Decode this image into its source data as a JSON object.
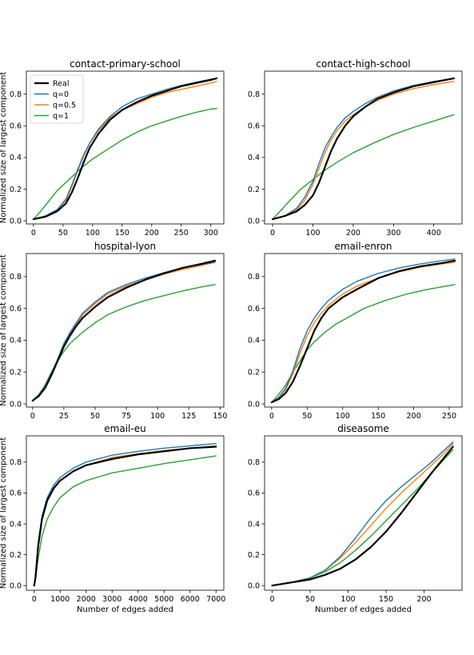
{
  "figure": {
    "ylabel": "Normalized size of largest component",
    "xlabel": "Number of edges added",
    "legend_position": "upper-left",
    "legend_panel": 0
  },
  "chart_data": [
    {
      "type": "line",
      "title": "contact-primary-school",
      "xlabel": "",
      "ylabel": "Normalized size of largest component",
      "xlim": [
        -12,
        322
      ],
      "ylim": [
        -0.02,
        0.945
      ],
      "xticks": [
        0,
        50,
        100,
        150,
        200,
        250,
        300
      ],
      "yticks": [
        0.0,
        0.2,
        0.4,
        0.6,
        0.8
      ],
      "grid": false,
      "series": [
        {
          "name": "Real",
          "color": "#000000",
          "width": 2.2,
          "x": [
            0,
            20,
            40,
            55,
            65,
            75,
            85,
            95,
            110,
            130,
            150,
            175,
            200,
            225,
            250,
            275,
            300,
            310
          ],
          "y": [
            0.01,
            0.025,
            0.06,
            0.11,
            0.18,
            0.27,
            0.37,
            0.46,
            0.55,
            0.64,
            0.7,
            0.75,
            0.79,
            0.82,
            0.85,
            0.87,
            0.89,
            0.9
          ]
        },
        {
          "name": "q=0",
          "color": "#1f77b4",
          "width": 1.4,
          "x": [
            0,
            20,
            40,
            55,
            65,
            75,
            85,
            95,
            110,
            130,
            150,
            175,
            200,
            225,
            250,
            275,
            300,
            310
          ],
          "y": [
            0.01,
            0.03,
            0.07,
            0.13,
            0.22,
            0.32,
            0.41,
            0.49,
            0.58,
            0.66,
            0.72,
            0.77,
            0.8,
            0.83,
            0.855,
            0.875,
            0.895,
            0.9
          ]
        },
        {
          "name": "q=0.5",
          "color": "#ff7f0e",
          "width": 1.4,
          "x": [
            0,
            20,
            40,
            55,
            65,
            75,
            85,
            95,
            110,
            130,
            150,
            175,
            200,
            225,
            250,
            275,
            300,
            310
          ],
          "y": [
            0.01,
            0.03,
            0.07,
            0.14,
            0.23,
            0.33,
            0.42,
            0.49,
            0.57,
            0.65,
            0.7,
            0.74,
            0.78,
            0.81,
            0.83,
            0.85,
            0.87,
            0.88
          ]
        },
        {
          "name": "q=1",
          "color": "#2ca02c",
          "width": 1.4,
          "x": [
            0,
            10,
            25,
            40,
            60,
            80,
            100,
            125,
            150,
            175,
            200,
            225,
            250,
            275,
            300,
            310
          ],
          "y": [
            0.01,
            0.05,
            0.12,
            0.19,
            0.26,
            0.33,
            0.39,
            0.45,
            0.51,
            0.56,
            0.6,
            0.63,
            0.66,
            0.685,
            0.705,
            0.71
          ]
        }
      ]
    },
    {
      "type": "line",
      "title": "contact-high-school",
      "xlabel": "",
      "ylabel": "",
      "xlim": [
        -20,
        470
      ],
      "ylim": [
        -0.02,
        0.945
      ],
      "xticks": [
        0,
        100,
        200,
        300,
        400
      ],
      "yticks": [
        0.0,
        0.2,
        0.4,
        0.6,
        0.8
      ],
      "grid": false,
      "series": [
        {
          "name": "Real",
          "color": "#000000",
          "width": 2.2,
          "x": [
            0,
            30,
            60,
            80,
            100,
            115,
            130,
            145,
            160,
            180,
            200,
            230,
            260,
            300,
            350,
            400,
            450
          ],
          "y": [
            0.01,
            0.03,
            0.06,
            0.1,
            0.16,
            0.24,
            0.34,
            0.44,
            0.52,
            0.6,
            0.66,
            0.72,
            0.77,
            0.81,
            0.85,
            0.875,
            0.9
          ]
        },
        {
          "name": "q=0",
          "color": "#1f77b4",
          "width": 1.4,
          "x": [
            0,
            30,
            60,
            80,
            100,
            115,
            130,
            145,
            160,
            180,
            200,
            230,
            260,
            300,
            350,
            400,
            450
          ],
          "y": [
            0.01,
            0.03,
            0.08,
            0.15,
            0.25,
            0.36,
            0.46,
            0.53,
            0.59,
            0.65,
            0.69,
            0.74,
            0.78,
            0.82,
            0.855,
            0.88,
            0.9
          ]
        },
        {
          "name": "q=0.5",
          "color": "#ff7f0e",
          "width": 1.4,
          "x": [
            0,
            30,
            60,
            80,
            100,
            115,
            130,
            145,
            160,
            180,
            200,
            230,
            260,
            300,
            350,
            400,
            450
          ],
          "y": [
            0.01,
            0.03,
            0.07,
            0.13,
            0.23,
            0.33,
            0.43,
            0.51,
            0.57,
            0.63,
            0.67,
            0.72,
            0.76,
            0.8,
            0.835,
            0.86,
            0.88
          ]
        },
        {
          "name": "q=1",
          "color": "#2ca02c",
          "width": 1.4,
          "x": [
            0,
            15,
            40,
            70,
            100,
            130,
            160,
            200,
            250,
            300,
            350,
            400,
            450
          ],
          "y": [
            0.01,
            0.05,
            0.12,
            0.2,
            0.26,
            0.32,
            0.37,
            0.43,
            0.49,
            0.545,
            0.59,
            0.63,
            0.67
          ]
        }
      ]
    },
    {
      "type": "line",
      "title": "hospital-lyon",
      "xlabel": "",
      "ylabel": "Normalized size of largest component",
      "xlim": [
        -5,
        153
      ],
      "ylim": [
        -0.02,
        0.945
      ],
      "xticks": [
        0,
        25,
        50,
        75,
        100,
        125,
        150
      ],
      "yticks": [
        0.0,
        0.2,
        0.4,
        0.6,
        0.8
      ],
      "grid": false,
      "series": [
        {
          "name": "Real",
          "color": "#000000",
          "width": 2.2,
          "x": [
            0,
            5,
            10,
            15,
            20,
            25,
            30,
            35,
            40,
            50,
            60,
            75,
            90,
            105,
            120,
            135,
            146
          ],
          "y": [
            0.02,
            0.05,
            0.1,
            0.18,
            0.27,
            0.36,
            0.43,
            0.49,
            0.54,
            0.61,
            0.67,
            0.73,
            0.78,
            0.82,
            0.855,
            0.88,
            0.9
          ]
        },
        {
          "name": "q=0",
          "color": "#1f77b4",
          "width": 1.4,
          "x": [
            0,
            5,
            10,
            15,
            20,
            25,
            30,
            35,
            40,
            50,
            60,
            75,
            90,
            105,
            120,
            135,
            146
          ],
          "y": [
            0.02,
            0.05,
            0.11,
            0.19,
            0.28,
            0.38,
            0.45,
            0.51,
            0.57,
            0.64,
            0.7,
            0.75,
            0.79,
            0.825,
            0.855,
            0.875,
            0.89
          ]
        },
        {
          "name": "q=0.5",
          "color": "#ff7f0e",
          "width": 1.4,
          "x": [
            0,
            5,
            10,
            15,
            20,
            25,
            30,
            35,
            40,
            50,
            60,
            75,
            90,
            105,
            120,
            135,
            146
          ],
          "y": [
            0.02,
            0.05,
            0.11,
            0.19,
            0.28,
            0.37,
            0.44,
            0.5,
            0.56,
            0.63,
            0.69,
            0.74,
            0.78,
            0.815,
            0.845,
            0.87,
            0.89
          ]
        },
        {
          "name": "q=1",
          "color": "#2ca02c",
          "width": 1.4,
          "x": [
            0,
            5,
            10,
            15,
            20,
            25,
            30,
            40,
            50,
            60,
            75,
            90,
            105,
            120,
            135,
            146
          ],
          "y": [
            0.02,
            0.06,
            0.12,
            0.2,
            0.27,
            0.33,
            0.38,
            0.45,
            0.51,
            0.56,
            0.61,
            0.65,
            0.68,
            0.71,
            0.735,
            0.75
          ]
        }
      ]
    },
    {
      "type": "line",
      "title": "email-enron",
      "xlabel": "",
      "ylabel": "",
      "xlim": [
        -10,
        268
      ],
      "ylim": [
        -0.02,
        0.945
      ],
      "xticks": [
        0,
        50,
        100,
        150,
        200,
        250
      ],
      "yticks": [
        0.0,
        0.2,
        0.4,
        0.6,
        0.8
      ],
      "grid": false,
      "series": [
        {
          "name": "Real",
          "color": "#000000",
          "width": 2.2,
          "x": [
            0,
            10,
            20,
            30,
            40,
            50,
            60,
            70,
            80,
            100,
            120,
            150,
            180,
            210,
            240,
            258
          ],
          "y": [
            0.01,
            0.03,
            0.07,
            0.14,
            0.24,
            0.35,
            0.46,
            0.54,
            0.6,
            0.67,
            0.72,
            0.79,
            0.835,
            0.865,
            0.885,
            0.9
          ]
        },
        {
          "name": "q=0",
          "color": "#1f77b4",
          "width": 1.4,
          "x": [
            0,
            10,
            20,
            30,
            40,
            50,
            60,
            70,
            80,
            100,
            120,
            150,
            180,
            210,
            240,
            258
          ],
          "y": [
            0.01,
            0.04,
            0.1,
            0.21,
            0.35,
            0.46,
            0.54,
            0.6,
            0.65,
            0.72,
            0.77,
            0.82,
            0.855,
            0.88,
            0.9,
            0.91
          ]
        },
        {
          "name": "q=0.5",
          "color": "#ff7f0e",
          "width": 1.4,
          "x": [
            0,
            10,
            20,
            30,
            40,
            50,
            60,
            70,
            80,
            100,
            120,
            150,
            180,
            210,
            240,
            258
          ],
          "y": [
            0.01,
            0.04,
            0.09,
            0.19,
            0.32,
            0.43,
            0.51,
            0.57,
            0.62,
            0.69,
            0.74,
            0.79,
            0.83,
            0.86,
            0.88,
            0.89
          ]
        },
        {
          "name": "q=1",
          "color": "#2ca02c",
          "width": 1.4,
          "x": [
            0,
            10,
            20,
            30,
            40,
            50,
            60,
            75,
            90,
            110,
            130,
            160,
            190,
            220,
            258
          ],
          "y": [
            0.01,
            0.06,
            0.12,
            0.2,
            0.27,
            0.34,
            0.39,
            0.45,
            0.5,
            0.55,
            0.6,
            0.65,
            0.69,
            0.72,
            0.75
          ]
        }
      ]
    },
    {
      "type": "line",
      "title": "email-eu",
      "xlabel": "Number of edges added",
      "ylabel": "Normalized size of largest component",
      "xlim": [
        -300,
        7300
      ],
      "ylim": [
        -0.03,
        0.97
      ],
      "xticks": [
        0,
        1000,
        2000,
        3000,
        4000,
        5000,
        6000,
        7000
      ],
      "yticks": [
        0.0,
        0.2,
        0.4,
        0.6,
        0.8
      ],
      "grid": false,
      "series": [
        {
          "name": "Real",
          "color": "#000000",
          "width": 2.2,
          "x": [
            0,
            50,
            150,
            300,
            500,
            750,
            1000,
            1500,
            2000,
            3000,
            4000,
            5000,
            6000,
            7000
          ],
          "y": [
            0.0,
            0.05,
            0.25,
            0.43,
            0.55,
            0.63,
            0.68,
            0.74,
            0.78,
            0.82,
            0.85,
            0.87,
            0.89,
            0.9
          ]
        },
        {
          "name": "q=0",
          "color": "#1f77b4",
          "width": 1.4,
          "x": [
            0,
            50,
            150,
            300,
            500,
            750,
            1000,
            1500,
            2000,
            3000,
            4000,
            5000,
            6000,
            7000
          ],
          "y": [
            0.0,
            0.06,
            0.27,
            0.45,
            0.57,
            0.65,
            0.7,
            0.76,
            0.8,
            0.845,
            0.87,
            0.89,
            0.905,
            0.92
          ]
        },
        {
          "name": "q=0.5",
          "color": "#ff7f0e",
          "width": 1.4,
          "x": [
            0,
            50,
            150,
            300,
            500,
            750,
            1000,
            1500,
            2000,
            3000,
            4000,
            5000,
            6000,
            7000
          ],
          "y": [
            0.0,
            0.05,
            0.25,
            0.43,
            0.55,
            0.63,
            0.68,
            0.74,
            0.78,
            0.83,
            0.855,
            0.875,
            0.89,
            0.905
          ]
        },
        {
          "name": "q=1",
          "color": "#2ca02c",
          "width": 1.4,
          "x": [
            0,
            50,
            150,
            300,
            500,
            750,
            1000,
            1500,
            2000,
            3000,
            4000,
            5000,
            6000,
            7000
          ],
          "y": [
            0.0,
            0.04,
            0.17,
            0.32,
            0.43,
            0.51,
            0.57,
            0.64,
            0.68,
            0.73,
            0.76,
            0.79,
            0.815,
            0.84
          ]
        }
      ]
    },
    {
      "type": "line",
      "title": "diseasome",
      "xlabel": "Number of edges added",
      "ylabel": "",
      "xlim": [
        -10,
        250
      ],
      "ylim": [
        -0.03,
        0.97
      ],
      "xticks": [
        0,
        50,
        100,
        150,
        200
      ],
      "yticks": [
        0.0,
        0.2,
        0.4,
        0.6,
        0.8
      ],
      "grid": false,
      "series": [
        {
          "name": "Real",
          "color": "#000000",
          "width": 2.2,
          "x": [
            0,
            25,
            50,
            70,
            90,
            110,
            130,
            150,
            170,
            190,
            210,
            225,
            238
          ],
          "y": [
            0.0,
            0.02,
            0.04,
            0.07,
            0.11,
            0.17,
            0.25,
            0.35,
            0.47,
            0.6,
            0.73,
            0.82,
            0.9
          ]
        },
        {
          "name": "q=0",
          "color": "#1f77b4",
          "width": 1.4,
          "x": [
            0,
            25,
            50,
            70,
            90,
            110,
            130,
            150,
            170,
            190,
            210,
            225,
            238
          ],
          "y": [
            0.0,
            0.02,
            0.05,
            0.1,
            0.19,
            0.31,
            0.44,
            0.55,
            0.64,
            0.72,
            0.8,
            0.87,
            0.93
          ]
        },
        {
          "name": "q=0.5",
          "color": "#ff7f0e",
          "width": 1.4,
          "x": [
            0,
            25,
            50,
            70,
            90,
            110,
            130,
            150,
            170,
            190,
            210,
            225,
            238
          ],
          "y": [
            0.0,
            0.02,
            0.05,
            0.1,
            0.18,
            0.28,
            0.39,
            0.5,
            0.6,
            0.69,
            0.78,
            0.85,
            0.92
          ]
        },
        {
          "name": "q=1",
          "color": "#2ca02c",
          "width": 1.4,
          "x": [
            0,
            25,
            50,
            70,
            90,
            110,
            130,
            150,
            170,
            190,
            210,
            225,
            238
          ],
          "y": [
            0.0,
            0.02,
            0.05,
            0.09,
            0.15,
            0.23,
            0.32,
            0.42,
            0.52,
            0.62,
            0.73,
            0.81,
            0.88
          ]
        }
      ]
    }
  ]
}
